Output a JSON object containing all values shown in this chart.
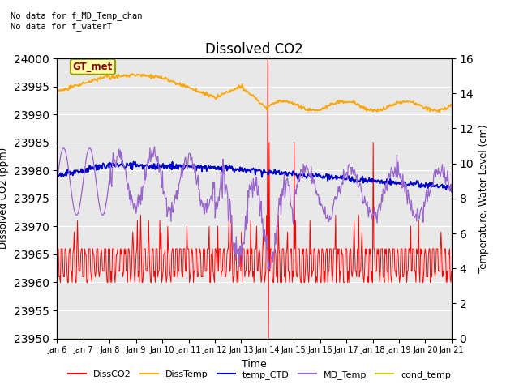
{
  "title": "Dissolved CO2",
  "ylabel_left": "Dissolved CO2 (ppm)",
  "ylabel_right": "Temperature, Water Level (cm)",
  "xlabel": "Time",
  "ylim_left": [
    23950,
    24000
  ],
  "ylim_right": [
    0,
    16
  ],
  "yticks_left": [
    23950,
    23955,
    23960,
    23965,
    23970,
    23975,
    23980,
    23985,
    23990,
    23995,
    24000
  ],
  "yticks_right": [
    0,
    2,
    4,
    6,
    8,
    10,
    12,
    14,
    16
  ],
  "xtick_labels": [
    "Jan 6",
    "Jan 7",
    "Jan 8",
    "Jan 9",
    "Jan 10",
    "Jan 11",
    "Jan 12",
    "Jan 13",
    "Jan 14",
    "Jan 15",
    "Jan 16",
    "Jan 17",
    "Jan 18",
    "Jan 19",
    "Jan 20",
    "Jan 21"
  ],
  "annotation_top_left": "No data for f_MD_Temp_chan\nNo data for f_waterT",
  "gt_met_label": "GT_met",
  "legend_labels": [
    "DissCO2",
    "DissTemp",
    "temp_CTD",
    "MD_Temp",
    "cond_temp"
  ],
  "legend_colors": [
    "#ff0000",
    "#ffa500",
    "#0000cd",
    "#9966cc",
    "#cccc00"
  ],
  "bg_color": "#e8e8e8",
  "grid_color": "#ffffff",
  "n_points": 600
}
